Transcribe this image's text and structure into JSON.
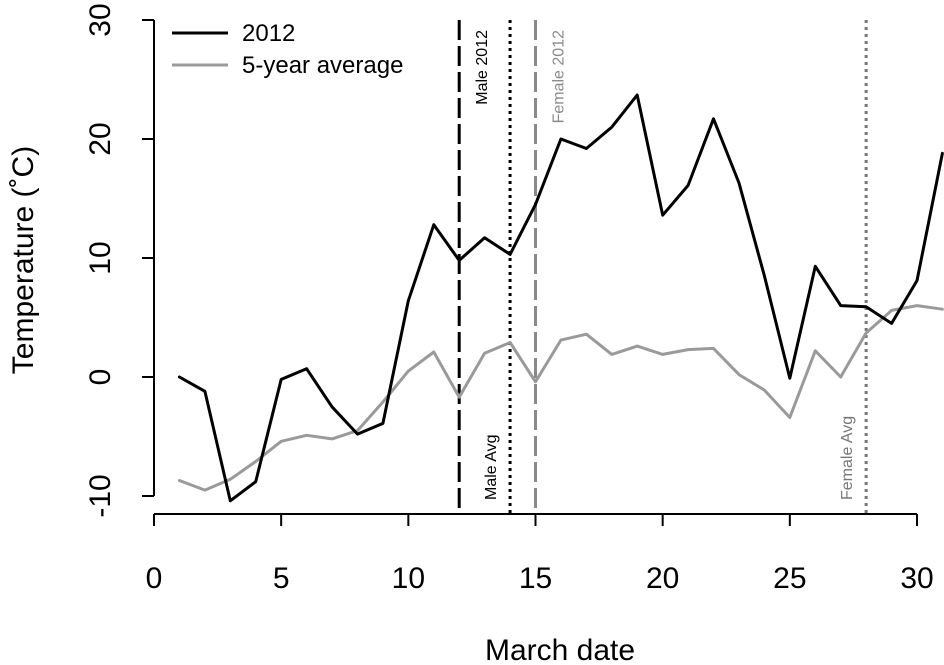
{
  "chart_data": {
    "type": "line",
    "title": "",
    "xlabel": "March date",
    "ylabel": "Temperature (˚C)",
    "xlim": [
      0,
      31
    ],
    "ylim": [
      -11.5,
      30
    ],
    "xticks": [
      0,
      5,
      10,
      15,
      20,
      25,
      30
    ],
    "yticks": [
      -10,
      0,
      10,
      20,
      30
    ],
    "grid": false,
    "legend_position": "top-left",
    "series": [
      {
        "name": "2012",
        "color": "#000000",
        "x": [
          1,
          2,
          3,
          4,
          5,
          6,
          7,
          8,
          9,
          10,
          11,
          12,
          13,
          14,
          15,
          16,
          17,
          18,
          19,
          20,
          21,
          22,
          23,
          24,
          25,
          26,
          27,
          28,
          29,
          30,
          31
        ],
        "y": [
          0,
          -1.2,
          -10.4,
          -8.8,
          -0.2,
          0.7,
          -2.5,
          -4.8,
          -3.9,
          6.4,
          12.8,
          9.8,
          11.7,
          10.3,
          14.5,
          20,
          19.2,
          21,
          23.7,
          13.6,
          16.1,
          21.7,
          16.3,
          8.5,
          -0.1,
          9.3,
          6,
          5.9,
          4.5,
          8.1,
          18.8
        ]
      },
      {
        "name": "5-year average",
        "color": "#9a9a9a",
        "x": [
          1,
          2,
          3,
          4,
          5,
          6,
          7,
          8,
          9,
          10,
          11,
          12,
          13,
          14,
          15,
          16,
          17,
          18,
          19,
          20,
          21,
          22,
          23,
          24,
          25,
          26,
          27,
          28,
          29,
          30,
          31
        ],
        "y": [
          -8.7,
          -9.5,
          -8.6,
          -7.1,
          -5.4,
          -4.9,
          -5.2,
          -4.5,
          -2.1,
          0.5,
          2.1,
          -1.7,
          2,
          2.9,
          -0.4,
          3.1,
          3.6,
          1.9,
          2.6,
          1.9,
          2.3,
          2.4,
          0.2,
          -1.1,
          -3.4,
          2.2,
          0,
          3.7,
          5.6,
          6,
          5.7
        ]
      }
    ],
    "vlines": [
      {
        "x": 12,
        "label": "Male 2012",
        "style": "long-dash",
        "color": "#000000",
        "label_pos": "top"
      },
      {
        "x": 14,
        "label": "Male Avg",
        "style": "dotted",
        "color": "#000000",
        "label_pos": "bottom"
      },
      {
        "x": 15,
        "label": "Female 2012",
        "style": "long-dash",
        "color": "#8a8a8a",
        "label_pos": "top"
      },
      {
        "x": 28,
        "label": "Female Avg",
        "style": "dotted",
        "color": "#777777",
        "label_pos": "bottom"
      }
    ]
  }
}
